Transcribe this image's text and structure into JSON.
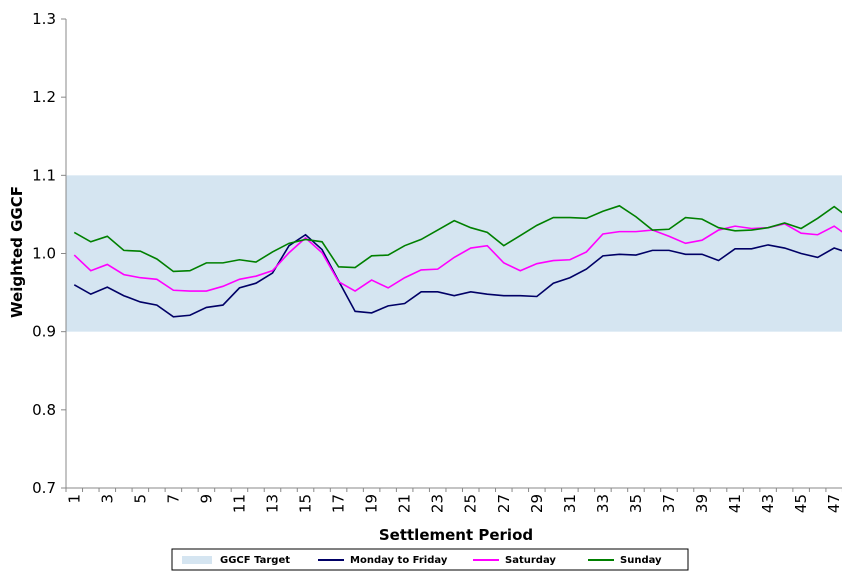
{
  "chart_data": {
    "type": "line",
    "x_label": "Settlement Period",
    "y_label": "Weighted GGCF",
    "categories": [
      "1",
      null,
      "3",
      null,
      "5",
      null,
      "7",
      null,
      "9",
      null,
      "11",
      null,
      "13",
      null,
      "15",
      null,
      "17",
      null,
      "19",
      null,
      "21",
      null,
      "23",
      null,
      "25",
      null,
      "27",
      null,
      "29",
      null,
      "31",
      null,
      "33",
      null,
      "35",
      null,
      "37",
      null,
      "39",
      null,
      "41",
      null,
      "43",
      null,
      "45",
      null,
      "47",
      null
    ],
    "band": {
      "name": "GGCF Target",
      "color": "#d5e5f1",
      "range": [
        0.9,
        1.1
      ]
    },
    "series": [
      {
        "name": "Monday to Friday",
        "color": "#000066",
        "values": [
          0.96,
          0.948,
          0.957,
          0.946,
          0.938,
          0.934,
          0.919,
          0.921,
          0.931,
          0.934,
          0.956,
          0.962,
          0.975,
          1.01,
          1.024,
          1.005,
          0.965,
          0.926,
          0.924,
          0.933,
          0.936,
          0.951,
          0.951,
          0.946,
          0.951,
          0.948,
          0.946,
          0.946,
          0.945,
          0.962,
          0.969,
          0.98,
          0.997,
          0.999,
          0.998,
          1.004,
          1.004,
          0.999,
          0.999,
          0.991,
          1.006,
          1.006,
          1.011,
          1.007,
          1.0,
          0.995,
          1.007,
          1.0
        ]
      },
      {
        "name": "Saturday",
        "color": "#ff00ff",
        "values": [
          0.998,
          0.978,
          0.986,
          0.973,
          0.969,
          0.967,
          0.953,
          0.952,
          0.952,
          0.958,
          0.967,
          0.971,
          0.978,
          1.001,
          1.02,
          1.001,
          0.964,
          0.952,
          0.966,
          0.956,
          0.969,
          0.979,
          0.98,
          0.995,
          1.007,
          1.01,
          0.988,
          0.978,
          0.987,
          0.991,
          0.992,
          1.002,
          1.025,
          1.028,
          1.028,
          1.03,
          1.022,
          1.013,
          1.017,
          1.03,
          1.035,
          1.032,
          1.033,
          1.038,
          1.026,
          1.024,
          1.035,
          1.02
        ]
      },
      {
        "name": "Sunday",
        "color": "#008000",
        "values": [
          1.027,
          1.015,
          1.022,
          1.004,
          1.003,
          0.993,
          0.977,
          0.978,
          0.988,
          0.988,
          0.992,
          0.989,
          1.002,
          1.013,
          1.018,
          1.015,
          0.983,
          0.982,
          0.997,
          0.998,
          1.01,
          1.018,
          1.03,
          1.042,
          1.033,
          1.027,
          1.01,
          1.023,
          1.036,
          1.046,
          1.046,
          1.045,
          1.054,
          1.061,
          1.047,
          1.03,
          1.031,
          1.046,
          1.044,
          1.033,
          1.029,
          1.03,
          1.033,
          1.039,
          1.032,
          1.045,
          1.06,
          1.044
        ]
      }
    ],
    "ylim": [
      0.7,
      1.3
    ],
    "yticks": [
      0.7,
      0.8,
      0.9,
      {
        "value": 1,
        "label": "1.0"
      },
      1.1,
      1.2,
      1.3
    ]
  }
}
